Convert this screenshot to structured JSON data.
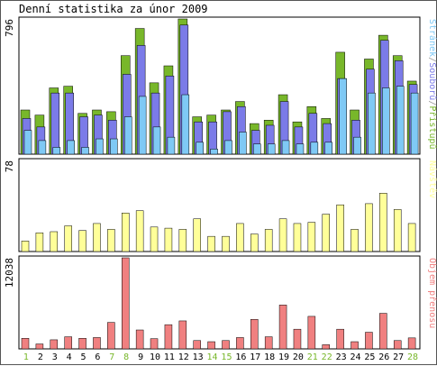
{
  "title": "Denní statistika za únor 2009",
  "colors": {
    "hits": "#78b72a",
    "files": "#7b7be8",
    "pages": "#7fc9f5",
    "visits": "#ffff99",
    "kbytes": "#f08080",
    "weekend": "#78b72a",
    "axis": "#000000",
    "border": "#555555"
  },
  "panels": {
    "top": {
      "max_label": "796",
      "legend": [
        {
          "text": "Stránek",
          "color": "#7fc9f5"
        },
        {
          "text": "/",
          "color": "#999999"
        },
        {
          "text": "Souborů",
          "color": "#7b7be8"
        },
        {
          "text": "/",
          "color": "#999999"
        },
        {
          "text": "Přístupů",
          "color": "#78b72a"
        }
      ]
    },
    "middle": {
      "max_label": "78",
      "legend": [
        {
          "text": "Návštěv",
          "color": "#ffff99"
        }
      ]
    },
    "bottom": {
      "max_label": "12038",
      "legend": [
        {
          "text": "Objem přenosu",
          "color": "#f08080"
        }
      ]
    }
  },
  "chart_data": {
    "type": "bar",
    "categories": [
      "1",
      "2",
      "3",
      "4",
      "5",
      "6",
      "7",
      "8",
      "9",
      "10",
      "11",
      "12",
      "13",
      "14",
      "15",
      "16",
      "17",
      "18",
      "19",
      "20",
      "21",
      "22",
      "23",
      "24",
      "25",
      "26",
      "27",
      "28"
    ],
    "weekend_days": [
      "1",
      "7",
      "8",
      "14",
      "15",
      "21",
      "22",
      "28"
    ],
    "series": [
      {
        "name": "Přístupů",
        "ymax": 796,
        "values": [
          260,
          230,
          390,
          400,
          240,
          260,
          250,
          580,
          740,
          420,
          520,
          796,
          220,
          230,
          260,
          310,
          180,
          200,
          350,
          190,
          280,
          210,
          600,
          260,
          560,
          700,
          580,
          430
        ]
      },
      {
        "name": "Souborů",
        "ymax": 796,
        "values": [
          210,
          160,
          360,
          360,
          220,
          230,
          200,
          470,
          640,
          360,
          460,
          760,
          190,
          190,
          250,
          280,
          140,
          170,
          310,
          160,
          240,
          180,
          445,
          200,
          500,
          670,
          550,
          410
        ]
      },
      {
        "name": "Stránek",
        "ymax": 796,
        "values": [
          140,
          80,
          40,
          80,
          40,
          90,
          90,
          220,
          340,
          160,
          100,
          350,
          70,
          30,
          80,
          130,
          60,
          60,
          80,
          60,
          70,
          70,
          445,
          100,
          360,
          390,
          400,
          360
        ]
      },
      {
        "name": "Návštěv",
        "ymax": 78,
        "values": [
          9,
          16,
          17,
          22,
          18,
          24,
          19,
          33,
          35,
          21,
          20,
          19,
          28,
          13,
          13,
          24,
          15,
          19,
          28,
          24,
          25,
          32,
          40,
          19,
          41,
          50,
          36,
          24
        ]
      },
      {
        "name": "Objem přenosu",
        "ymax": 12038,
        "values": [
          1400,
          650,
          1200,
          1600,
          1400,
          1500,
          3500,
          12038,
          2500,
          1350,
          3200,
          3700,
          1100,
          950,
          1100,
          1500,
          3900,
          1600,
          5800,
          2600,
          4300,
          550,
          2600,
          950,
          2200,
          4700,
          1100,
          1450
        ]
      }
    ]
  },
  "x_labels": [
    "1",
    "2",
    "3",
    "4",
    "5",
    "6",
    "7",
    "8",
    "9",
    "10",
    "11",
    "12",
    "13",
    "14",
    "15",
    "16",
    "17",
    "18",
    "19",
    "20",
    "21",
    "22",
    "23",
    "24",
    "25",
    "26",
    "27",
    "28"
  ]
}
